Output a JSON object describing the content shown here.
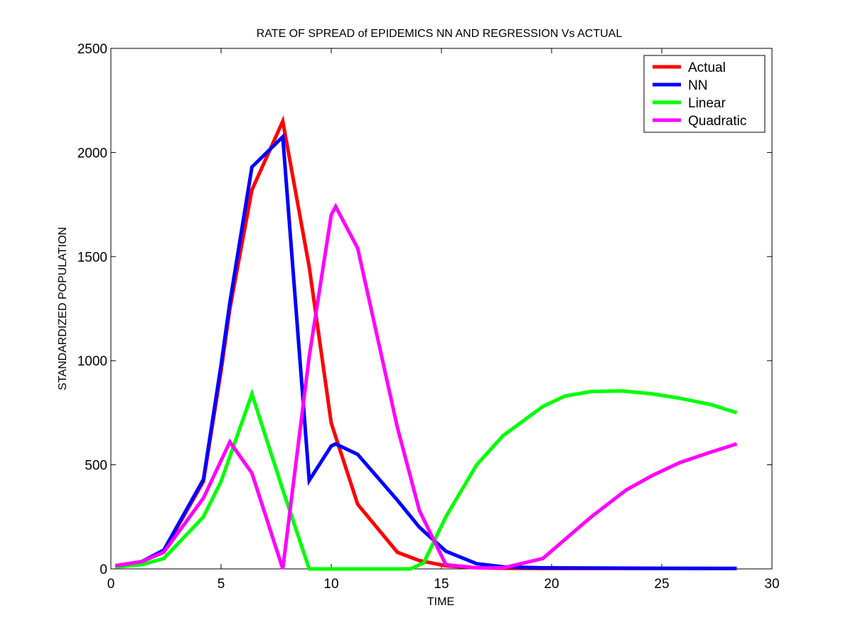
{
  "chart_data": {
    "type": "line",
    "title": "RATE OF SPREAD of EPIDEMICS NN AND REGRESSION Vs ACTUAL",
    "xlabel": "TIME",
    "ylabel": "STANDARDIZED POPULATION",
    "xlim": [
      0,
      30
    ],
    "ylim": [
      0,
      2500
    ],
    "xticks": [
      0,
      5,
      10,
      15,
      20,
      25,
      30
    ],
    "xtick_labels": [
      "0",
      "5",
      "10",
      "15",
      "20",
      "25",
      "30"
    ],
    "yticks": [
      0,
      500,
      1000,
      1500,
      2000,
      2500
    ],
    "ytick_labels": [
      "0",
      "500",
      "1000",
      "1500",
      "2000",
      "2500"
    ],
    "grid": false,
    "legend_position": "top-right",
    "series": [
      {
        "name": "Actual",
        "color": "#ff0000",
        "points": [
          [
            0.2,
            15
          ],
          [
            1.4,
            35
          ],
          [
            2.4,
            85
          ],
          [
            4.2,
            420
          ],
          [
            5.0,
            950
          ],
          [
            5.4,
            1250
          ],
          [
            6.4,
            1820
          ],
          [
            7.8,
            2150
          ],
          [
            9.0,
            1450
          ],
          [
            10.0,
            700
          ],
          [
            11.2,
            310
          ],
          [
            13.0,
            80
          ],
          [
            14.0,
            40
          ],
          [
            15.2,
            15
          ],
          [
            16.6,
            5
          ],
          [
            17.8,
            3
          ],
          [
            19.6,
            2
          ],
          [
            24.6,
            2
          ],
          [
            28.4,
            2
          ]
        ]
      },
      {
        "name": "NN",
        "color": "#0000ff",
        "points": [
          [
            0.2,
            15
          ],
          [
            1.4,
            35
          ],
          [
            2.4,
            90
          ],
          [
            4.2,
            430
          ],
          [
            5.0,
            980
          ],
          [
            5.4,
            1280
          ],
          [
            6.4,
            1930
          ],
          [
            7.8,
            2075
          ],
          [
            9.0,
            425
          ],
          [
            10.0,
            590
          ],
          [
            10.2,
            600
          ],
          [
            11.2,
            550
          ],
          [
            13.0,
            330
          ],
          [
            14.0,
            200
          ],
          [
            15.2,
            85
          ],
          [
            16.6,
            25
          ],
          [
            17.8,
            10
          ],
          [
            19.6,
            5
          ],
          [
            24.6,
            3
          ],
          [
            28.4,
            2
          ]
        ]
      },
      {
        "name": "Linear",
        "color": "#00ff00",
        "points": [
          [
            0.2,
            10
          ],
          [
            1.4,
            20
          ],
          [
            2.4,
            50
          ],
          [
            4.2,
            250
          ],
          [
            5.0,
            420
          ],
          [
            6.4,
            840
          ],
          [
            7.8,
            380
          ],
          [
            9.0,
            0
          ],
          [
            13.6,
            0
          ],
          [
            14.2,
            30
          ],
          [
            15.2,
            250
          ],
          [
            16.6,
            500
          ],
          [
            17.8,
            640
          ],
          [
            19.6,
            780
          ],
          [
            20.6,
            830
          ],
          [
            21.8,
            852
          ],
          [
            23.2,
            855
          ],
          [
            24.6,
            840
          ],
          [
            25.8,
            820
          ],
          [
            27.2,
            790
          ],
          [
            28.4,
            750
          ]
        ]
      },
      {
        "name": "Quadratic",
        "color": "#ff00ff",
        "points": [
          [
            0.2,
            15
          ],
          [
            1.4,
            35
          ],
          [
            2.4,
            80
          ],
          [
            4.2,
            340
          ],
          [
            5.0,
            520
          ],
          [
            5.4,
            610
          ],
          [
            6.4,
            460
          ],
          [
            7.8,
            0
          ],
          [
            9.0,
            1020
          ],
          [
            10.0,
            1700
          ],
          [
            10.2,
            1740
          ],
          [
            11.2,
            1540
          ],
          [
            13.0,
            680
          ],
          [
            14.0,
            280
          ],
          [
            15.2,
            20
          ],
          [
            16.6,
            5
          ],
          [
            17.8,
            5
          ],
          [
            19.6,
            50
          ],
          [
            21.8,
            250
          ],
          [
            23.4,
            380
          ],
          [
            24.6,
            450
          ],
          [
            25.8,
            510
          ],
          [
            27.2,
            560
          ],
          [
            28.4,
            600
          ]
        ]
      }
    ]
  }
}
